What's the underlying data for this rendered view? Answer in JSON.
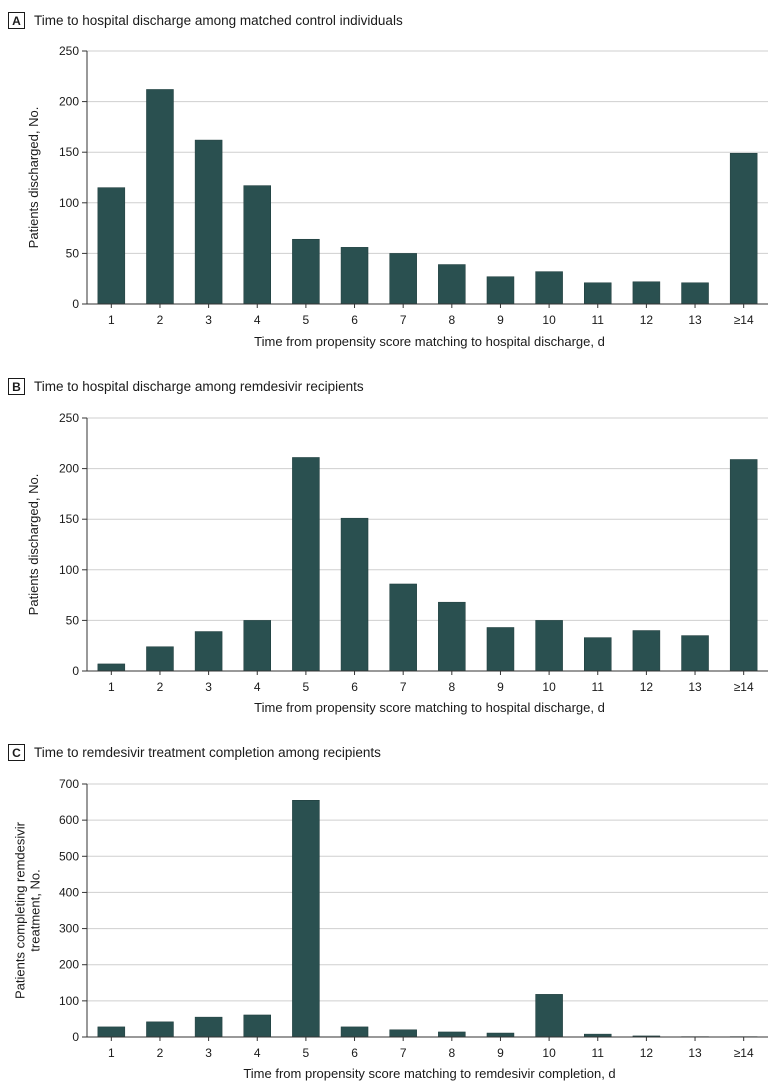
{
  "colors": {
    "bar": "#2a5050",
    "grid": "#cfcfcf",
    "axis": "#333333"
  },
  "chart_data": [
    {
      "type": "bar",
      "panel_label": "A",
      "title": "Time to hospital discharge among matched control individuals",
      "categories": [
        "1",
        "2",
        "3",
        "4",
        "5",
        "6",
        "7",
        "8",
        "9",
        "10",
        "11",
        "12",
        "13",
        "≥14"
      ],
      "values": [
        115,
        212,
        162,
        117,
        64,
        56,
        50,
        39,
        27,
        32,
        21,
        22,
        21,
        149
      ],
      "xlabel": "Time from propensity score matching to hospital discharge, d",
      "ylabel": [
        "Patients discharged, No."
      ],
      "ylim": [
        0,
        250
      ],
      "yticks": [
        0,
        50,
        100,
        150,
        200,
        250
      ],
      "grid": true
    },
    {
      "type": "bar",
      "panel_label": "B",
      "title": "Time to hospital discharge among remdesivir recipients",
      "categories": [
        "1",
        "2",
        "3",
        "4",
        "5",
        "6",
        "7",
        "8",
        "9",
        "10",
        "11",
        "12",
        "13",
        "≥14"
      ],
      "values": [
        7,
        24,
        39,
        50,
        211,
        151,
        86,
        68,
        43,
        50,
        33,
        40,
        35,
        209
      ],
      "xlabel": "Time from propensity score matching to hospital discharge, d",
      "ylabel": [
        "Patients discharged, No."
      ],
      "ylim": [
        0,
        250
      ],
      "yticks": [
        0,
        50,
        100,
        150,
        200,
        250
      ],
      "grid": true
    },
    {
      "type": "bar",
      "panel_label": "C",
      "title": "Time to remdesivir treatment completion among recipients",
      "categories": [
        "1",
        "2",
        "3",
        "4",
        "5",
        "6",
        "7",
        "8",
        "9",
        "10",
        "11",
        "12",
        "13",
        "≥14"
      ],
      "values": [
        28,
        42,
        55,
        61,
        655,
        28,
        20,
        14,
        11,
        118,
        8,
        3,
        1,
        1
      ],
      "xlabel": "Time from propensity score matching to remdesivir completion, d",
      "ylabel": [
        "Patients completing remdesivir",
        "treatment, No."
      ],
      "ylim": [
        0,
        700
      ],
      "yticks": [
        0,
        100,
        200,
        300,
        400,
        500,
        600,
        700
      ],
      "grid": true
    }
  ]
}
